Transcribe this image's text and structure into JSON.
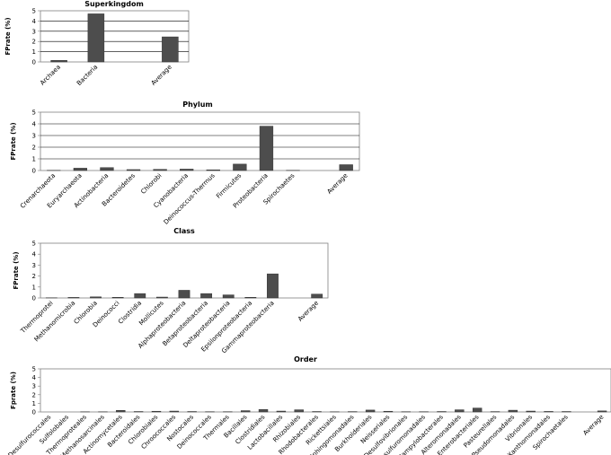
{
  "chart_data": [
    {
      "type": "bar",
      "title": "Superkingdom",
      "ylabel": "FPrate (%)",
      "ylim": [
        0,
        5
      ],
      "yticks": [
        "0",
        "1",
        "2",
        "3",
        "4",
        "5"
      ],
      "grid": true,
      "categories": [
        "Archaea",
        "Bacteria",
        "",
        "Average"
      ],
      "values": [
        0.15,
        4.7,
        null,
        2.45
      ],
      "bar_color": "#4d4d4d"
    },
    {
      "type": "bar",
      "title": "Phylum",
      "ylabel": "FPrate (%)",
      "ylim": [
        0,
        5
      ],
      "yticks": [
        "0",
        "1",
        "2",
        "3",
        "4",
        "5"
      ],
      "grid": true,
      "categories": [
        "Crenarchaeota",
        "Euryarchaeota",
        "Actinobacteria",
        "Bacteroidetes",
        "Chlorobi",
        "Cyanobacteria",
        "Deinococcus-Thermus",
        "Firmicutes",
        "Proteobacteria",
        "Spirochaetes",
        "",
        "Average"
      ],
      "values": [
        0.02,
        0.2,
        0.25,
        0.08,
        0.1,
        0.12,
        0.06,
        0.55,
        3.8,
        0.02,
        null,
        0.5
      ],
      "bar_color": "#4d4d4d"
    },
    {
      "type": "bar",
      "title": "Class",
      "ylabel": "FPrate (%)",
      "ylim": [
        0,
        5
      ],
      "yticks": [
        "0",
        "1",
        "2",
        "3",
        "4",
        "5"
      ],
      "grid": false,
      "categories": [
        "Thermoprotei",
        "Methanomicrobia",
        "Chlorobia",
        "Deinococci",
        "Clostridia",
        "Mollicutes",
        "Alphaproteobacteria",
        "Betaproteobacteria",
        "Deltaproteobacteria",
        "Epsilonproteobacteria",
        "Gammaproteobacteria",
        "",
        "Average"
      ],
      "values": [
        0.02,
        0.05,
        0.1,
        0.06,
        0.4,
        0.08,
        0.7,
        0.4,
        0.28,
        0.06,
        2.2,
        null,
        0.35
      ],
      "bar_color": "#4d4d4d"
    },
    {
      "type": "bar",
      "title": "Order",
      "ylabel": "Fprate (%)",
      "ylim": [
        0,
        5
      ],
      "yticks": [
        "0",
        "1",
        "2",
        "3",
        "4",
        "5"
      ],
      "grid": false,
      "categories": [
        "Desulfurococcales",
        "Sulfolobales",
        "Thermoproteales",
        "Methanosarcinales",
        "Actinomycetales",
        "Bacteroidales",
        "Chlorobiales",
        "Chroococcales",
        "Nostocales",
        "Deinococcales",
        "Thermales",
        "Bacillales",
        "Clostridiales",
        "Lactobacillales",
        "Rhizobiales",
        "Rhodobacterales",
        "Rickettsiales",
        "Sphingomonadales",
        "Burkholderiales",
        "Neisseriales",
        "Desulfovibrionales",
        "Desulfuromonadales",
        "Campylobacterales",
        "Alteromonadales",
        "Enterobacteriales",
        "Pasteurellales",
        "Pseudomonadales",
        "Vibrionales",
        "Xanthomonadales",
        "Spirochaetales",
        "",
        "Average"
      ],
      "values": [
        0.0,
        0.0,
        0.02,
        0.02,
        0.18,
        0.05,
        0.08,
        0.1,
        0.05,
        0.03,
        0.03,
        0.15,
        0.28,
        0.1,
        0.25,
        0.05,
        0.02,
        0.04,
        0.22,
        0.08,
        0.03,
        0.03,
        0.05,
        0.25,
        0.45,
        0.04,
        0.2,
        0.1,
        0.06,
        0.05,
        null,
        0.12
      ],
      "bar_color": "#4d4d4d"
    }
  ]
}
